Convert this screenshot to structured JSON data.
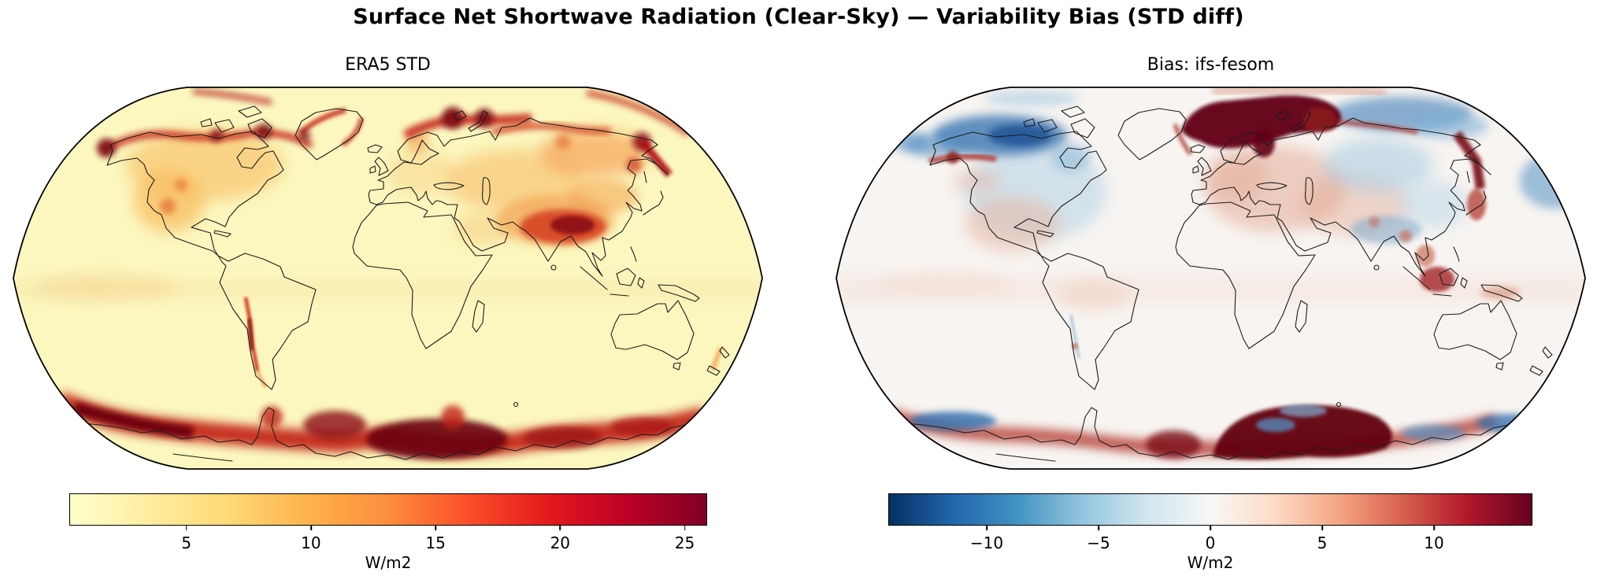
{
  "figure": {
    "title": "Surface Net Shortwave Radiation (Clear-Sky) — Variability Bias (STD diff)",
    "variable": "Surface Net Shortwave Radiation (Clear-Sky)",
    "metric": "Variability Bias (STD diff)",
    "projection": "Robinson",
    "background_color": "#ffffff"
  },
  "chart_data": [
    {
      "type": "heatmap",
      "title": "ERA5 STD",
      "units": "W/m2",
      "projection": "Robinson world map",
      "legend_position": "bottom",
      "colorbar": {
        "colormap": "YlOrRd",
        "vmin": 0.3,
        "vmax": 25.9,
        "ticks": [
          5,
          10,
          15,
          20,
          25
        ],
        "tick_labels": [
          "5",
          "10",
          "15",
          "20",
          "25"
        ],
        "units": "W/m2",
        "stops": [
          "#ffffcc",
          "#ffeda0",
          "#fed976",
          "#feb24c",
          "#fd8d3c",
          "#fc4e2a",
          "#e31a1c",
          "#bd0026",
          "#800026"
        ]
      },
      "features": [
        {
          "region": "tropical and subtropical oceans",
          "approx_value_wm2": 2
        },
        {
          "region": "arctic coastal seas (Alaska, Canadian Archipelago, Barents/Kara)",
          "approx_value_wm2": 22
        },
        {
          "region": "boreal Canada and western United States",
          "approx_value_wm2": 10
        },
        {
          "region": "central and eastern Siberia",
          "approx_value_wm2": 12
        },
        {
          "region": "Tibetan Plateau / Himalaya",
          "approx_value_wm2": 22
        },
        {
          "region": "Andes (Chile coast strip)",
          "approx_value_wm2": 20
        },
        {
          "region": "Kamchatka / Sea of Okhotsk coast",
          "approx_value_wm2": 20
        },
        {
          "region": "Southern Ocean sea-ice band around Antarctica",
          "approx_value_wm2": 24
        },
        {
          "region": "Antarctic interior and Greenland interior",
          "approx_value_wm2": 2
        }
      ]
    },
    {
      "type": "heatmap",
      "title": "Bias: ifs-fesom",
      "units": "W/m2",
      "projection": "Robinson world map",
      "legend_position": "bottom",
      "colorbar": {
        "colormap": "RdBu_r",
        "vmin": -14.4,
        "vmax": 14.4,
        "ticks": [
          -10,
          -5,
          0,
          5,
          10
        ],
        "tick_labels": [
          "−10",
          "−5",
          "0",
          "5",
          "10"
        ],
        "units": "W/m2",
        "stops": [
          "#053061",
          "#2166ac",
          "#4393c3",
          "#92c5de",
          "#d1e5f0",
          "#f7f7f7",
          "#fddbc7",
          "#f4a582",
          "#d6604d",
          "#b2182b",
          "#67001f"
        ]
      },
      "features": [
        {
          "region": "most oceans and low latitudes",
          "approx_value_wm2": 0
        },
        {
          "region": "Greenland Sea / Barents Sea / Kara Sea",
          "approx_value_wm2": 14
        },
        {
          "region": "Beaufort / Chukchi Arctic ocean",
          "approx_value_wm2": -9
        },
        {
          "region": "East Siberian Arctic shelf",
          "approx_value_wm2": -6
        },
        {
          "region": "interior North America",
          "approx_value_wm2": -3
        },
        {
          "region": "Europe and western Russia (speckled)",
          "approx_value_wm2": 3
        },
        {
          "region": "Kamchatka / Sea of Okhotsk",
          "approx_value_wm2": 13
        },
        {
          "region": "Maritime Continent (Borneo / Malay Peninsula)",
          "approx_value_wm2": 9
        },
        {
          "region": "Weddell Sea sector of Southern Ocean",
          "approx_value_wm2": 14
        },
        {
          "region": "outer edge of Southern Ocean sea-ice band",
          "approx_value_wm2": -8
        }
      ]
    }
  ]
}
